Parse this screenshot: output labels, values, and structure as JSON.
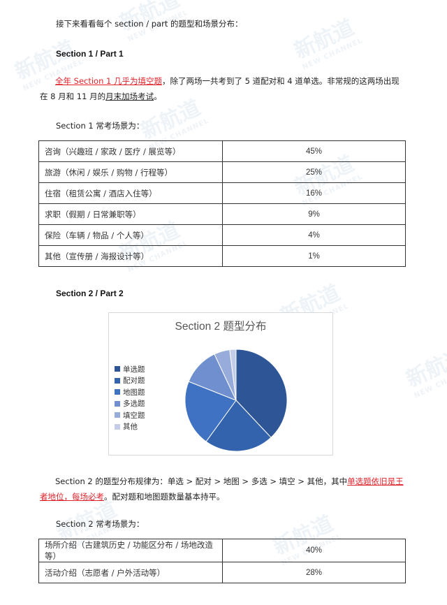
{
  "watermark": {
    "cn": "新航道",
    "en": "NEW CHANNEL"
  },
  "intro": "接下来看看每个 section / part 的题型和场景分布：",
  "section1": {
    "heading": "Section 1 / Part 1",
    "para_red": "全年 Section 1 几乎为填空题",
    "para_mid": "，除了两场一共考到了 5 道配对和 4 道单选。非常规的这两场出现在 8 月和 11 月的",
    "para_ul": "月末加场考试",
    "para_end": "。",
    "scenes_label": "Section 1 常考场景为：",
    "scenes": [
      {
        "name": "咨询（兴趣班 / 家政 / 医疗 / 展览等）",
        "pct": "45%"
      },
      {
        "name": "旅游（休闲 / 娱乐 / 购物 / 行程等）",
        "pct": "25%"
      },
      {
        "name": "住宿（租赁公寓 / 酒店入住等）",
        "pct": "16%"
      },
      {
        "name": "求职（假期 / 日常兼职等）",
        "pct": "9%"
      },
      {
        "name": "保险（车辆 / 物品 / 个人等）",
        "pct": "4%"
      },
      {
        "name": "其他（宣传册 / 海报设计等）",
        "pct": "1%"
      }
    ]
  },
  "section2": {
    "heading": "Section 2 / Part 2",
    "para_start": "Section 2 的题型分布规律为：单选 > 配对 > 地图 > 多选 > 填空 > 其他，其中",
    "para_red": "单选题依旧是王者地位，每场必考",
    "para_end": "。配对题和地图题数量基本持平。",
    "scenes_label": "Section 2 常考场景为：",
    "scenes": [
      {
        "name": "场所介绍（古建筑历史 / 功能区分布 / 场地改造等）",
        "pct": "40%"
      },
      {
        "name": "活动介绍（志愿者 / 户外活动等）",
        "pct": "28%"
      }
    ]
  },
  "chart_data": {
    "type": "pie",
    "title": "Section 2  题型分布",
    "legend_position": "left",
    "categories": [
      "单选题",
      "配对题",
      "地图题",
      "多选题",
      "填空题",
      "其他"
    ],
    "values": [
      38,
      22,
      21,
      12,
      5,
      2
    ],
    "colors": [
      "#2e5596",
      "#3463ae",
      "#3f72c2",
      "#6f8fce",
      "#98acdb",
      "#c3cdea"
    ]
  }
}
